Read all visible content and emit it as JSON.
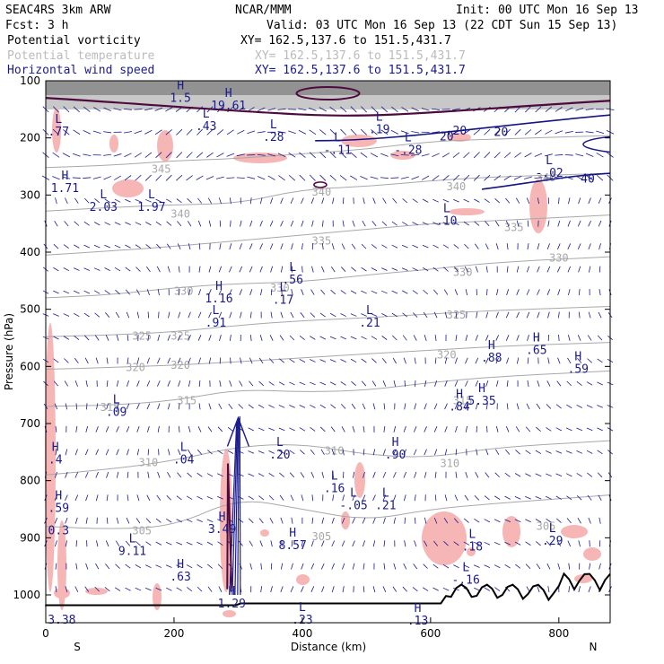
{
  "header": {
    "experiment": "SEAC4RS  3km ARW",
    "fcst": "Fcst:    3 h",
    "center": "NCAR/MMM",
    "init": "Init: 00 UTC Mon 16 Sep 13",
    "valid": "Valid: 03 UTC Mon 16 Sep 13 (22 CDT Sun 15 Sep 13)",
    "fields": [
      {
        "label": "Potential vorticity",
        "xy": "XY= 162.5,137.6 to 151.5,431.7",
        "color": "#000000"
      },
      {
        "label": "Potential temperature",
        "xy": "XY= 162.5,137.6 to 151.5,431.7",
        "color": "#bbbbbb"
      },
      {
        "label": "Horizontal wind speed",
        "xy": "XY= 162.5,137.6 to 151.5,431.7",
        "color": "#1a1a8c"
      }
    ]
  },
  "colors": {
    "pv_contour": "#4d0a3d",
    "theta_contour": "#a8a8a8",
    "wind_contour": "#141482",
    "wind_vector": "#1a1a8c",
    "pv_shade": "#f7b6b6",
    "strat_shade": "#9a9a9a",
    "terrain": "#000000",
    "label_dark": "#1a1a8c"
  },
  "chart_data": {
    "type": "cross-section",
    "xlabel": "Distance (km)",
    "ylabel": "Pressure (hPa)",
    "x_end_labels": {
      "left": "S",
      "right": "N"
    },
    "xlim": [
      0,
      880
    ],
    "ylim": [
      1050,
      100
    ],
    "x_ticks": [
      0,
      200,
      400,
      600,
      800
    ],
    "y_ticks": [
      100,
      200,
      300,
      400,
      500,
      600,
      700,
      800,
      900,
      1000
    ],
    "theta_isentropes": [
      {
        "value": 345,
        "points": [
          [
            0,
            252
          ],
          [
            100,
            248
          ],
          [
            200,
            240
          ],
          [
            300,
            236
          ],
          [
            400,
            228
          ],
          [
            500,
            220
          ],
          [
            600,
            206
          ],
          [
            700,
            202
          ],
          [
            880,
            196
          ]
        ],
        "labels": [
          [
            180,
            255
          ]
        ]
      },
      {
        "value": 340,
        "points": [
          [
            0,
            328
          ],
          [
            100,
            322
          ],
          [
            200,
            317
          ],
          [
            300,
            315
          ],
          [
            400,
            290
          ],
          [
            500,
            285
          ],
          [
            600,
            275
          ],
          [
            700,
            268
          ],
          [
            880,
            262
          ]
        ],
        "labels": [
          [
            210,
            333
          ],
          [
            430,
            295
          ],
          [
            640,
            285
          ],
          [
            780,
            270
          ]
        ]
      },
      {
        "value": 335,
        "points": [
          [
            0,
            405
          ],
          [
            100,
            398
          ],
          [
            200,
            390
          ],
          [
            300,
            380
          ],
          [
            400,
            370
          ],
          [
            500,
            360
          ],
          [
            600,
            350
          ],
          [
            700,
            345
          ],
          [
            880,
            335
          ]
        ],
        "labels": [
          [
            430,
            380
          ],
          [
            730,
            357
          ]
        ]
      },
      {
        "value": 330,
        "points": [
          [
            0,
            480
          ],
          [
            100,
            475
          ],
          [
            200,
            462
          ],
          [
            300,
            455
          ],
          [
            400,
            452
          ],
          [
            500,
            440
          ],
          [
            600,
            430
          ],
          [
            700,
            418
          ],
          [
            880,
            408
          ]
        ],
        "labels": [
          [
            215,
            468
          ],
          [
            365,
            463
          ],
          [
            650,
            435
          ],
          [
            800,
            410
          ]
        ]
      },
      {
        "value": 325,
        "points": [
          [
            0,
            548
          ],
          [
            100,
            545
          ],
          [
            200,
            540
          ],
          [
            300,
            528
          ],
          [
            400,
            520
          ],
          [
            500,
            515
          ],
          [
            600,
            508
          ],
          [
            700,
            502
          ],
          [
            880,
            495
          ]
        ],
        "labels": [
          [
            150,
            547
          ],
          [
            210,
            547
          ],
          [
            640,
            510
          ]
        ]
      },
      {
        "value": 320,
        "points": [
          [
            0,
            605
          ],
          [
            100,
            602
          ],
          [
            200,
            598
          ],
          [
            300,
            592
          ],
          [
            400,
            585
          ],
          [
            500,
            578
          ],
          [
            600,
            572
          ],
          [
            700,
            565
          ],
          [
            880,
            558
          ]
        ],
        "labels": [
          [
            140,
            602
          ],
          [
            210,
            598
          ],
          [
            625,
            580
          ]
        ]
      },
      {
        "value": 315,
        "points": [
          [
            0,
            670
          ],
          [
            100,
            668
          ],
          [
            200,
            660
          ],
          [
            300,
            640
          ],
          [
            400,
            645
          ],
          [
            500,
            642
          ],
          [
            600,
            628
          ],
          [
            700,
            618
          ],
          [
            880,
            608
          ]
        ],
        "labels": [
          [
            100,
            672
          ],
          [
            220,
            660
          ],
          [
            650,
            660
          ]
        ]
      },
      {
        "value": 310,
        "points": [
          [
            0,
            790
          ],
          [
            100,
            780
          ],
          [
            200,
            765
          ],
          [
            300,
            740
          ],
          [
            400,
            735
          ],
          [
            500,
            755
          ],
          [
            600,
            760
          ],
          [
            700,
            742
          ],
          [
            880,
            730
          ]
        ],
        "labels": [
          [
            160,
            768
          ],
          [
            450,
            748
          ],
          [
            630,
            770
          ]
        ]
      },
      {
        "value": 305,
        "points": [
          [
            0,
            880
          ],
          [
            100,
            885
          ],
          [
            200,
            880
          ],
          [
            300,
            830
          ],
          [
            400,
            850
          ],
          [
            500,
            870
          ],
          [
            600,
            850
          ],
          [
            700,
            840
          ],
          [
            880,
            825
          ]
        ],
        "labels": [
          [
            150,
            888
          ],
          [
            430,
            898
          ],
          [
            780,
            880
          ]
        ]
      }
    ],
    "pv_labels": [
      {
        "hl": "H",
        "value": "1.5",
        "x": 210,
        "p": 137
      },
      {
        "hl": "H",
        "value": "19.61",
        "x": 285,
        "p": 150
      },
      {
        "hl": "L",
        "value": ".77",
        "x": 20,
        "p": 196
      },
      {
        "hl": "L",
        "value": ".43",
        "x": 250,
        "p": 186
      },
      {
        "hl": "L",
        "value": ".28",
        "x": 355,
        "p": 205
      },
      {
        "hl": "L",
        "value": "-.11",
        "x": 455,
        "p": 228
      },
      {
        "hl": "L",
        "value": ".19",
        "x": 520,
        "p": 192
      },
      {
        "hl": "L",
        "value": "-.28",
        "x": 565,
        "p": 228
      },
      {
        "hl": "",
        "value": ".20",
        "x": 640,
        "p": 194
      },
      {
        "hl": "L",
        "value": "-.02",
        "x": 785,
        "p": 268
      },
      {
        "hl": "H",
        "value": "1.71",
        "x": 30,
        "p": 295
      },
      {
        "hl": "L",
        "value": "2.03",
        "x": 90,
        "p": 328
      },
      {
        "hl": "L",
        "value": "1.97",
        "x": 165,
        "p": 328
      },
      {
        "hl": "L",
        "value": ".10",
        "x": 625,
        "p": 352
      },
      {
        "hl": "L",
        "value": ".56",
        "x": 385,
        "p": 455
      },
      {
        "hl": "H",
        "value": "1.16",
        "x": 270,
        "p": 488
      },
      {
        "hl": "L",
        "value": ".17",
        "x": 370,
        "p": 490
      },
      {
        "hl": "L",
        "value": ".91",
        "x": 265,
        "p": 530
      },
      {
        "hl": "L",
        "value": ".21",
        "x": 505,
        "p": 530
      },
      {
        "hl": "H",
        "value": ".88",
        "x": 695,
        "p": 592
      },
      {
        "hl": "H",
        "value": ".65",
        "x": 765,
        "p": 578
      },
      {
        "hl": "H",
        "value": ".59",
        "x": 830,
        "p": 611
      },
      {
        "hl": "L",
        "value": ".09",
        "x": 110,
        "p": 687
      },
      {
        "hl": "H",
        "value": ".84",
        "x": 645,
        "p": 677
      },
      {
        "hl": "H",
        "value": "5.35",
        "x": 680,
        "p": 667
      },
      {
        "hl": "H",
        "value": ".4",
        "x": 15,
        "p": 770
      },
      {
        "hl": "L",
        "value": ".04",
        "x": 215,
        "p": 770
      },
      {
        "hl": "L",
        "value": ".20",
        "x": 365,
        "p": 761
      },
      {
        "hl": "H",
        "value": ".90",
        "x": 545,
        "p": 761
      },
      {
        "hl": "H",
        "value": ".59",
        "x": 20,
        "p": 855
      },
      {
        "hl": "L",
        "value": ".16",
        "x": 450,
        "p": 820
      },
      {
        "hl": "L",
        "value": "-.05",
        "x": 480,
        "p": 850
      },
      {
        "hl": "L",
        "value": ".21",
        "x": 530,
        "p": 850
      },
      {
        "hl": "",
        "value": "0.3",
        "x": 20,
        "p": 894
      },
      {
        "hl": "H",
        "value": "3.49",
        "x": 275,
        "p": 892
      },
      {
        "hl": "H",
        "value": "8.57",
        "x": 385,
        "p": 920
      },
      {
        "hl": "L",
        "value": "9.11",
        "x": 135,
        "p": 930
      },
      {
        "hl": "L",
        "value": ".18",
        "x": 665,
        "p": 922
      },
      {
        "hl": "L",
        "value": ".29",
        "x": 790,
        "p": 912
      },
      {
        "hl": "H",
        "value": ".63",
        "x": 210,
        "p": 975
      },
      {
        "hl": "L",
        "value": "-.16",
        "x": 655,
        "p": 980
      },
      {
        "hl": "H",
        "value": "1.29",
        "x": 290,
        "p": 1022
      },
      {
        "hl": "L",
        "value": ".23",
        "x": 400,
        "p": 1050
      },
      {
        "hl": "H",
        "value": ".13",
        "x": 580,
        "p": 1052
      },
      {
        "hl": "",
        "value": "3.38",
        "x": 25,
        "p": 1050
      }
    ],
    "wind_speed_labels": [
      {
        "value": "20",
        "x": 625,
        "p": 198
      },
      {
        "value": "20",
        "x": 710,
        "p": 190
      },
      {
        "value": "40",
        "x": 845,
        "p": 272
      }
    ]
  }
}
